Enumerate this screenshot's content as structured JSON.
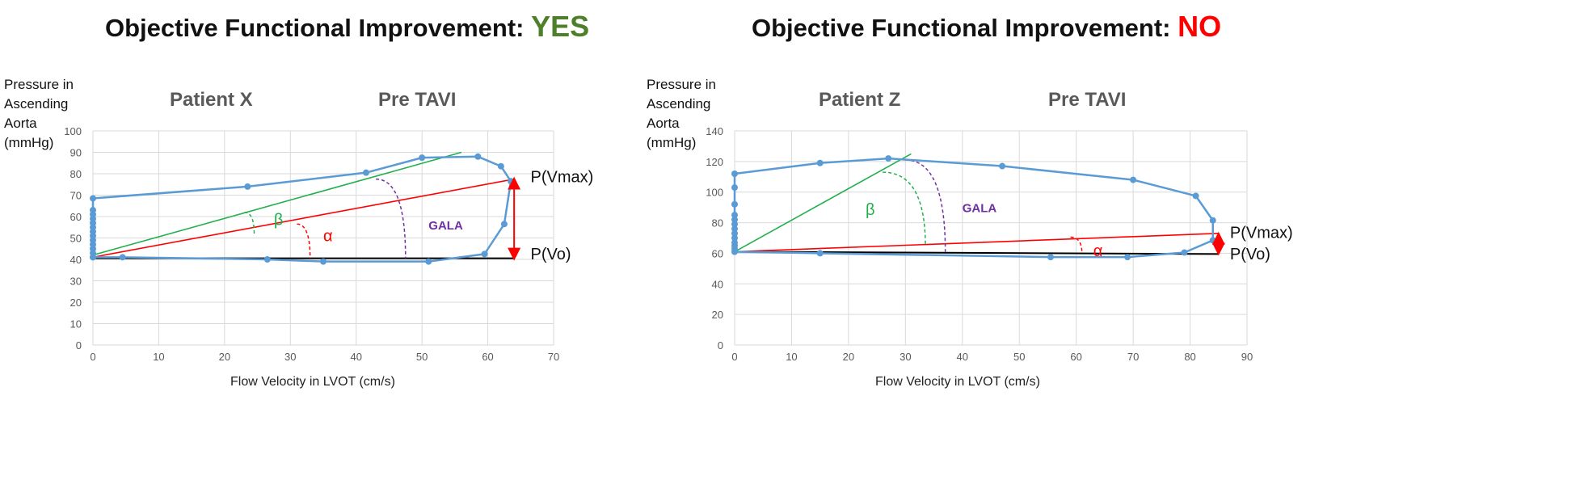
{
  "chart_data": [
    {
      "type": "line",
      "heading": "Objective Functional Improvement: ",
      "verdict": "YES",
      "verdict_color": "#4e7f2b",
      "ylabel_lines": [
        "Pressure in",
        "Ascending",
        "Aorta",
        "(mmHg)"
      ],
      "title": "Patient X",
      "subtitle": "Pre TAVI",
      "xlabel": "Flow Velocity in LVOT (cm/s)",
      "xlim": [
        0,
        70
      ],
      "xticks": [
        0,
        10,
        20,
        30,
        40,
        50,
        60,
        70
      ],
      "ylim": [
        0,
        100
      ],
      "yticks": [
        0,
        10,
        20,
        30,
        40,
        50,
        60,
        70,
        80,
        90,
        100
      ],
      "grid": true,
      "series": [
        {
          "name": "P-V loop",
          "color": "#5b9bd5",
          "points": [
            [
              0,
              41
            ],
            [
              0,
              43
            ],
            [
              0,
              45
            ],
            [
              0,
              47
            ],
            [
              0,
              49
            ],
            [
              0,
              51
            ],
            [
              0,
              53
            ],
            [
              0,
              55
            ],
            [
              0,
              57
            ],
            [
              0,
              59
            ],
            [
              0,
              61
            ],
            [
              0,
              63
            ],
            [
              0,
              68.5
            ],
            [
              23.5,
              74
            ],
            [
              41.5,
              80.5
            ],
            [
              50,
              87.5
            ],
            [
              58.5,
              88
            ],
            [
              62,
              83.5
            ],
            [
              63.5,
              76.5
            ],
            [
              62.5,
              56.5
            ],
            [
              59.5,
              42.5
            ],
            [
              51,
              39
            ],
            [
              35,
              39
            ],
            [
              26.5,
              40
            ],
            [
              4.5,
              41
            ],
            [
              0,
              41
            ]
          ]
        }
      ],
      "lines": [
        {
          "name": "beta-line",
          "color": "#22b04c",
          "from": [
            0,
            42
          ],
          "to": [
            56,
            90
          ]
        },
        {
          "name": "alpha-line",
          "color": "#ff0000",
          "from": [
            0,
            41
          ],
          "to": [
            64,
            77.5
          ]
        },
        {
          "name": "baseline",
          "color": "#000000",
          "from": [
            0,
            40.5
          ],
          "to": [
            64,
            40.5
          ]
        }
      ],
      "arcs": [
        {
          "name": "beta-arc",
          "color": "#22b04c",
          "from": [
            23,
            62
          ],
          "to": [
            24.5,
            52
          ]
        },
        {
          "name": "alpha-arc",
          "color": "#ff0000",
          "from": [
            31,
            56.5
          ],
          "to": [
            33,
            40.5
          ]
        },
        {
          "name": "gala-arc",
          "color": "#7030a0",
          "from": [
            43,
            77.5
          ],
          "to": [
            47.5,
            40.5
          ]
        }
      ],
      "arrow": {
        "x": 64,
        "from": 40.5,
        "to": 77.5,
        "color": "#ff0000"
      },
      "labels": [
        {
          "text": "β",
          "at": [
            27.5,
            56
          ],
          "color": "#22b04c"
        },
        {
          "text": "α",
          "at": [
            35,
            48.5
          ],
          "color": "#ff0000"
        },
        {
          "text": "GALA",
          "at": [
            51,
            54
          ],
          "color": "#7030a0"
        },
        {
          "text": "P(Vmax)",
          "at": [
            66.5,
            76
          ],
          "color": "#111111"
        },
        {
          "text": "P(Vo)",
          "at": [
            66.5,
            40
          ],
          "color": "#111111"
        }
      ]
    },
    {
      "type": "line",
      "heading": "Objective Functional Improvement: ",
      "verdict": "NO",
      "verdict_color": "#ff0000",
      "ylabel_lines": [
        "Pressure in",
        "Ascending",
        "Aorta",
        "(mmHg)"
      ],
      "title": "Patient Z",
      "subtitle": "Pre TAVI",
      "xlabel": "Flow Velocity in LVOT (cm/s)",
      "xlim": [
        0,
        90
      ],
      "xticks": [
        0,
        10,
        20,
        30,
        40,
        50,
        60,
        70,
        80,
        90
      ],
      "ylim": [
        0,
        140
      ],
      "yticks": [
        0,
        20,
        40,
        60,
        80,
        100,
        120,
        140
      ],
      "grid": true,
      "series": [
        {
          "name": "P-V loop",
          "color": "#5b9bd5",
          "points": [
            [
              0,
              61
            ],
            [
              0,
              63
            ],
            [
              0,
              65
            ],
            [
              0,
              67
            ],
            [
              0,
              70
            ],
            [
              0,
              73
            ],
            [
              0,
              76
            ],
            [
              0,
              79
            ],
            [
              0,
              82
            ],
            [
              0,
              85
            ],
            [
              0,
              92
            ],
            [
              0,
              103
            ],
            [
              0,
              112
            ],
            [
              15,
              119
            ],
            [
              27,
              122
            ],
            [
              47,
              117
            ],
            [
              70,
              108
            ],
            [
              81,
              97.5
            ],
            [
              84,
              81.5
            ],
            [
              84,
              68.5
            ],
            [
              79,
              60.5
            ],
            [
              69,
              57.5
            ],
            [
              55.5,
              57.5
            ],
            [
              15,
              60
            ],
            [
              0,
              61
            ]
          ]
        }
      ],
      "lines": [
        {
          "name": "beta-line",
          "color": "#22b04c",
          "from": [
            0,
            61
          ],
          "to": [
            31,
            125
          ]
        },
        {
          "name": "alpha-line",
          "color": "#ff0000",
          "from": [
            0,
            61
          ],
          "to": [
            85,
            73
          ]
        },
        {
          "name": "baseline",
          "color": "#000000",
          "from": [
            0,
            61
          ],
          "to": [
            85,
            59.5
          ]
        }
      ],
      "arcs": [
        {
          "name": "beta-arc",
          "color": "#22b04c",
          "from": [
            26,
            113
          ],
          "to": [
            33.5,
            65
          ]
        },
        {
          "name": "gala-arc",
          "color": "#7030a0",
          "from": [
            30,
            121
          ],
          "to": [
            37,
            61
          ]
        },
        {
          "name": "alpha-arc",
          "color": "#ff0000",
          "from": [
            59,
            70.5
          ],
          "to": [
            61,
            60
          ]
        }
      ],
      "arrow": {
        "x": 85,
        "from": 60,
        "to": 72.5,
        "color": "#ff0000"
      },
      "labels": [
        {
          "text": "β",
          "at": [
            23,
            85
          ],
          "color": "#22b04c"
        },
        {
          "text": "α",
          "at": [
            63,
            58
          ],
          "color": "#ff0000"
        },
        {
          "text": "GALA",
          "at": [
            40,
            87
          ],
          "color": "#7030a0"
        },
        {
          "text": "P(Vmax)",
          "at": [
            87,
            70
          ],
          "color": "#111111"
        },
        {
          "text": "P(Vo)",
          "at": [
            87,
            56
          ],
          "color": "#111111"
        }
      ]
    }
  ]
}
